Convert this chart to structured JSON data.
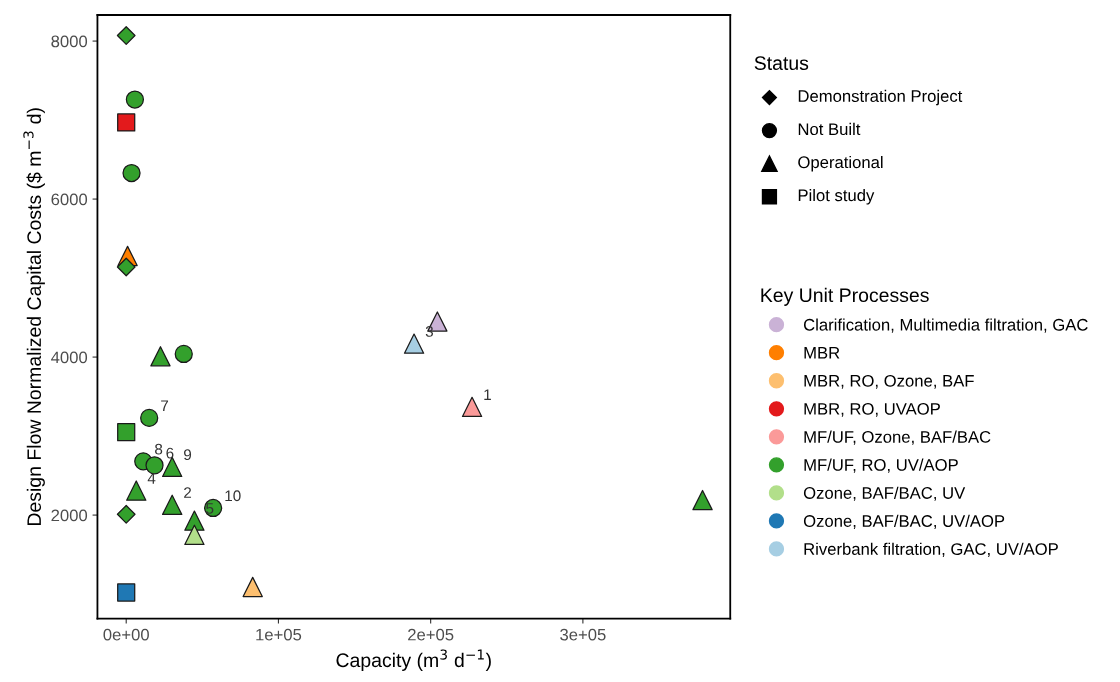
{
  "chart_data": {
    "type": "scatter",
    "xlabel": "Capacity (m$^{3}$ d$^{−1}$)",
    "ylabel": "Design Flow Normalized Capital Costs ($ m$^{−3}$ d)",
    "xlim": [
      -18900,
      396800
    ],
    "ylim": [
      690,
      8330
    ],
    "xticks": [
      {
        "value": 0,
        "label": "0e+00"
      },
      {
        "value": 100000,
        "label": "1e+05"
      },
      {
        "value": 200000,
        "label": "2e+05"
      },
      {
        "value": 300000,
        "label": "3e+05"
      }
    ],
    "yticks": [
      2000,
      4000,
      6000,
      8000
    ],
    "grid": false,
    "legend": "right",
    "legend_title": "Key Unit Processes",
    "series": [
      {
        "name": "Clarification, Multimedia filtration, GAC",
        "color": "#cab2d6",
        "marker": "triangle",
        "x": [
          204400
        ],
        "values": [
          4450
        ]
      },
      {
        "name": "MBR",
        "color": "#ff7f00",
        "marker": "triangle",
        "x": [
          900
        ],
        "values": [
          5280
        ]
      },
      {
        "name": "MBR, RO, Ozone, BAF",
        "color": "#fdbf6f",
        "marker": "triangle",
        "x": [
          83100
        ],
        "values": [
          1090
        ]
      },
      {
        "name": "MBR, RO, UVAOP",
        "color": "#e31a1c",
        "marker": "square",
        "x": [
          0
        ],
        "values": [
          6970
        ]
      },
      {
        "name": "MF/UF, Ozone, BAF/BAC",
        "color": "#fb9a99",
        "marker": "triangle",
        "x": [
          227200
        ],
        "values": [
          3370
        ]
      },
      {
        "name": "MF/UF, RO, UV/AOP",
        "color": "#33a02c",
        "marker": "circle",
        "x": [
          5700,
          3500,
          37800,
          15100,
          11200,
          18600,
          57100
        ],
        "values": [
          7260,
          6330,
          4040,
          3230,
          2680,
          2630,
          2090
        ]
      },
      {
        "color": "#33a02c",
        "marker": "diamond",
        "x": [
          0,
          0,
          0
        ],
        "values": [
          8070,
          5140,
          2010
        ]
      },
      {
        "color": "#33a02c",
        "marker": "triangle",
        "x": [
          22500,
          30200,
          6600,
          30200,
          44800,
          378600
        ],
        "values": [
          4010,
          2610,
          2310,
          2130,
          1930,
          2190
        ]
      },
      {
        "color": "#33a02c",
        "marker": "square",
        "x": [
          0
        ],
        "values": [
          3050
        ]
      },
      {
        "name": "Ozone, BAF/BAC, UV",
        "color": "#b2df8a",
        "marker": "triangle",
        "x": [
          44800
        ],
        "values": [
          1750
        ]
      },
      {
        "name": "Ozone, BAF/BAC, UV/AOP",
        "color": "#1f78b4",
        "marker": "square",
        "x": [
          0
        ],
        "values": [
          1020
        ]
      },
      {
        "name": "Riverbank filtration, GAC, UV/AOP",
        "color": "#a6cee3",
        "marker": "triangle",
        "x": [
          189100
        ],
        "values": [
          4170
        ]
      }
    ],
    "annotations": [
      "Status",
      "Demonstration Project",
      "Not Built",
      "Operational",
      "Pilot study",
      {
        "text": "1",
        "x": 227200,
        "y": 3370
      },
      {
        "text": "2",
        "x": 30200,
        "y": 2130
      },
      {
        "text": "3",
        "x": 189100,
        "y": 4170
      },
      {
        "text": "4",
        "x": 6600,
        "y": 2310
      },
      {
        "text": "5",
        "x": 44800,
        "y": 1930
      },
      {
        "text": "6",
        "x": 18600,
        "y": 2630
      },
      {
        "text": "7",
        "x": 15100,
        "y": 3230
      },
      {
        "text": "8",
        "x": 11200,
        "y": 2680
      },
      {
        "text": "9",
        "x": 30200,
        "y": 2610
      },
      {
        "text": "10",
        "x": 57100,
        "y": 2090
      }
    ]
  }
}
